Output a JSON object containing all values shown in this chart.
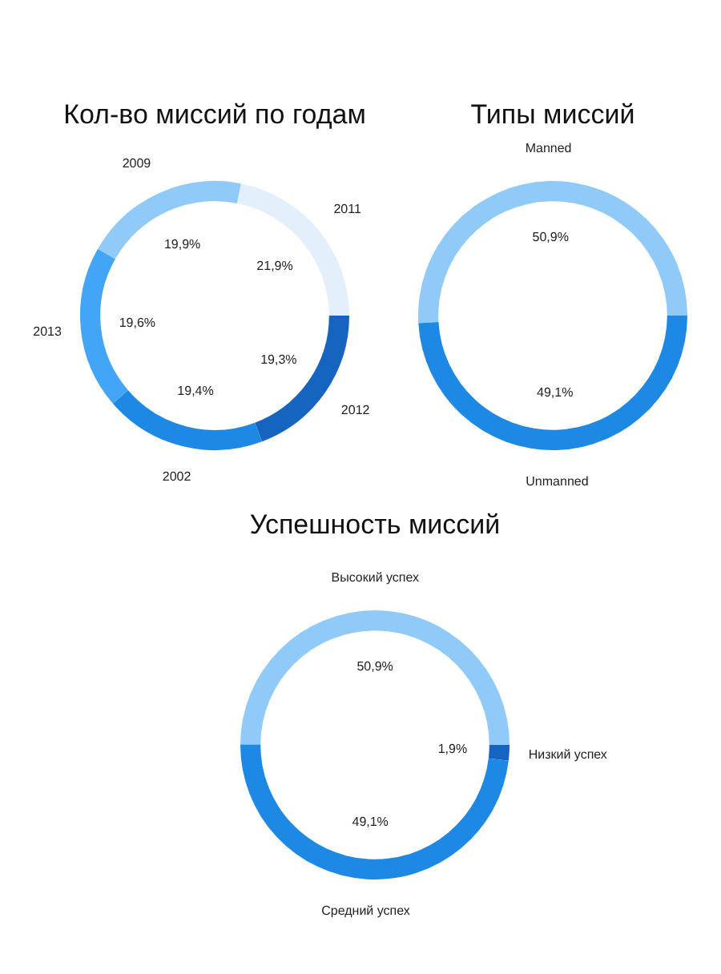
{
  "chart_data": [
    {
      "type": "donut",
      "title": "Кол-во миссий по годам",
      "categories": [
        "2011",
        "2012",
        "2002",
        "2013",
        "2009"
      ],
      "values": [
        21.9,
        19.3,
        19.4,
        19.6,
        19.9
      ],
      "colors": [
        "#e3f0fc",
        "#1565c0",
        "#1e88e5",
        "#42a5f5",
        "#90caf9"
      ],
      "value_labels": [
        "21,9%",
        "19,3%",
        "19,4%",
        "19,6%",
        "19,9%"
      ]
    },
    {
      "type": "donut",
      "title": "Типы миссий",
      "categories": [
        "Manned",
        "Unmanned"
      ],
      "values": [
        50.9,
        49.1
      ],
      "colors": [
        "#90caf9",
        "#1e88e5"
      ],
      "value_labels": [
        "50,9%",
        "49,1%"
      ]
    },
    {
      "type": "donut",
      "title": "Успешность миссий",
      "categories": [
        "Высокий успех",
        "Низкий успех",
        "Средний успех"
      ],
      "values": [
        50.9,
        1.9,
        49.1
      ],
      "colors": [
        "#90caf9",
        "#1565c0",
        "#1e88e5"
      ],
      "value_labels": [
        "50,9%",
        "1,9%",
        "49,1%"
      ]
    }
  ]
}
